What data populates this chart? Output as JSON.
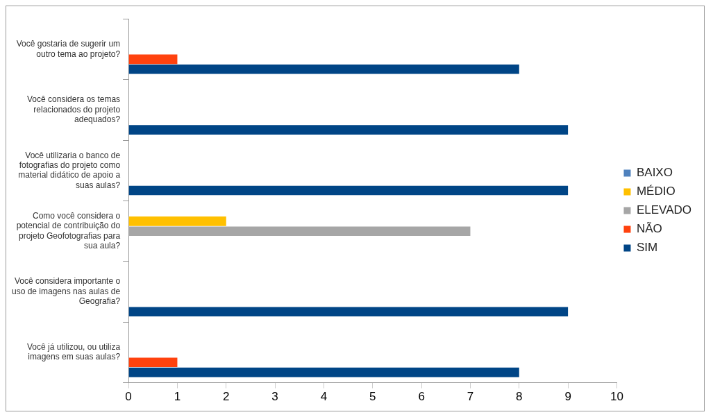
{
  "chart_data": {
    "type": "bar",
    "orientation": "horizontal",
    "categories": [
      "Você gostaria de sugerir um outro tema ao projeto?",
      "Você considera os temas relacionados do projeto adequados?",
      "Você utilizaria o banco de fotografias do projeto como material didático de apoio a suas aulas?",
      "Como você considera o potencial de contribuição do projeto Geofotografias para sua aula?",
      "Você considera importante o uso de imagens nas aulas de Geografia?",
      "Você já utilizou, ou utiliza imagens em suas aulas?"
    ],
    "series": [
      {
        "name": "BAIXO",
        "color": "#4f81bd",
        "values": [
          null,
          null,
          null,
          null,
          null,
          null
        ]
      },
      {
        "name": "MÉDIO",
        "color": "#ffc000",
        "values": [
          null,
          null,
          null,
          2,
          null,
          null
        ]
      },
      {
        "name": "ELEVADO",
        "color": "#a6a6a6",
        "values": [
          null,
          null,
          null,
          7,
          null,
          null
        ]
      },
      {
        "name": "NÃO",
        "color": "#ff420e",
        "values": [
          1,
          null,
          null,
          null,
          null,
          1
        ]
      },
      {
        "name": "SIM",
        "color": "#004586",
        "values": [
          8,
          9,
          9,
          null,
          9,
          8
        ]
      }
    ],
    "xlim": [
      0,
      10
    ],
    "xticks": [
      0,
      1,
      2,
      3,
      4,
      5,
      6,
      7,
      8,
      9,
      10
    ],
    "grid": false,
    "legend": "right"
  }
}
